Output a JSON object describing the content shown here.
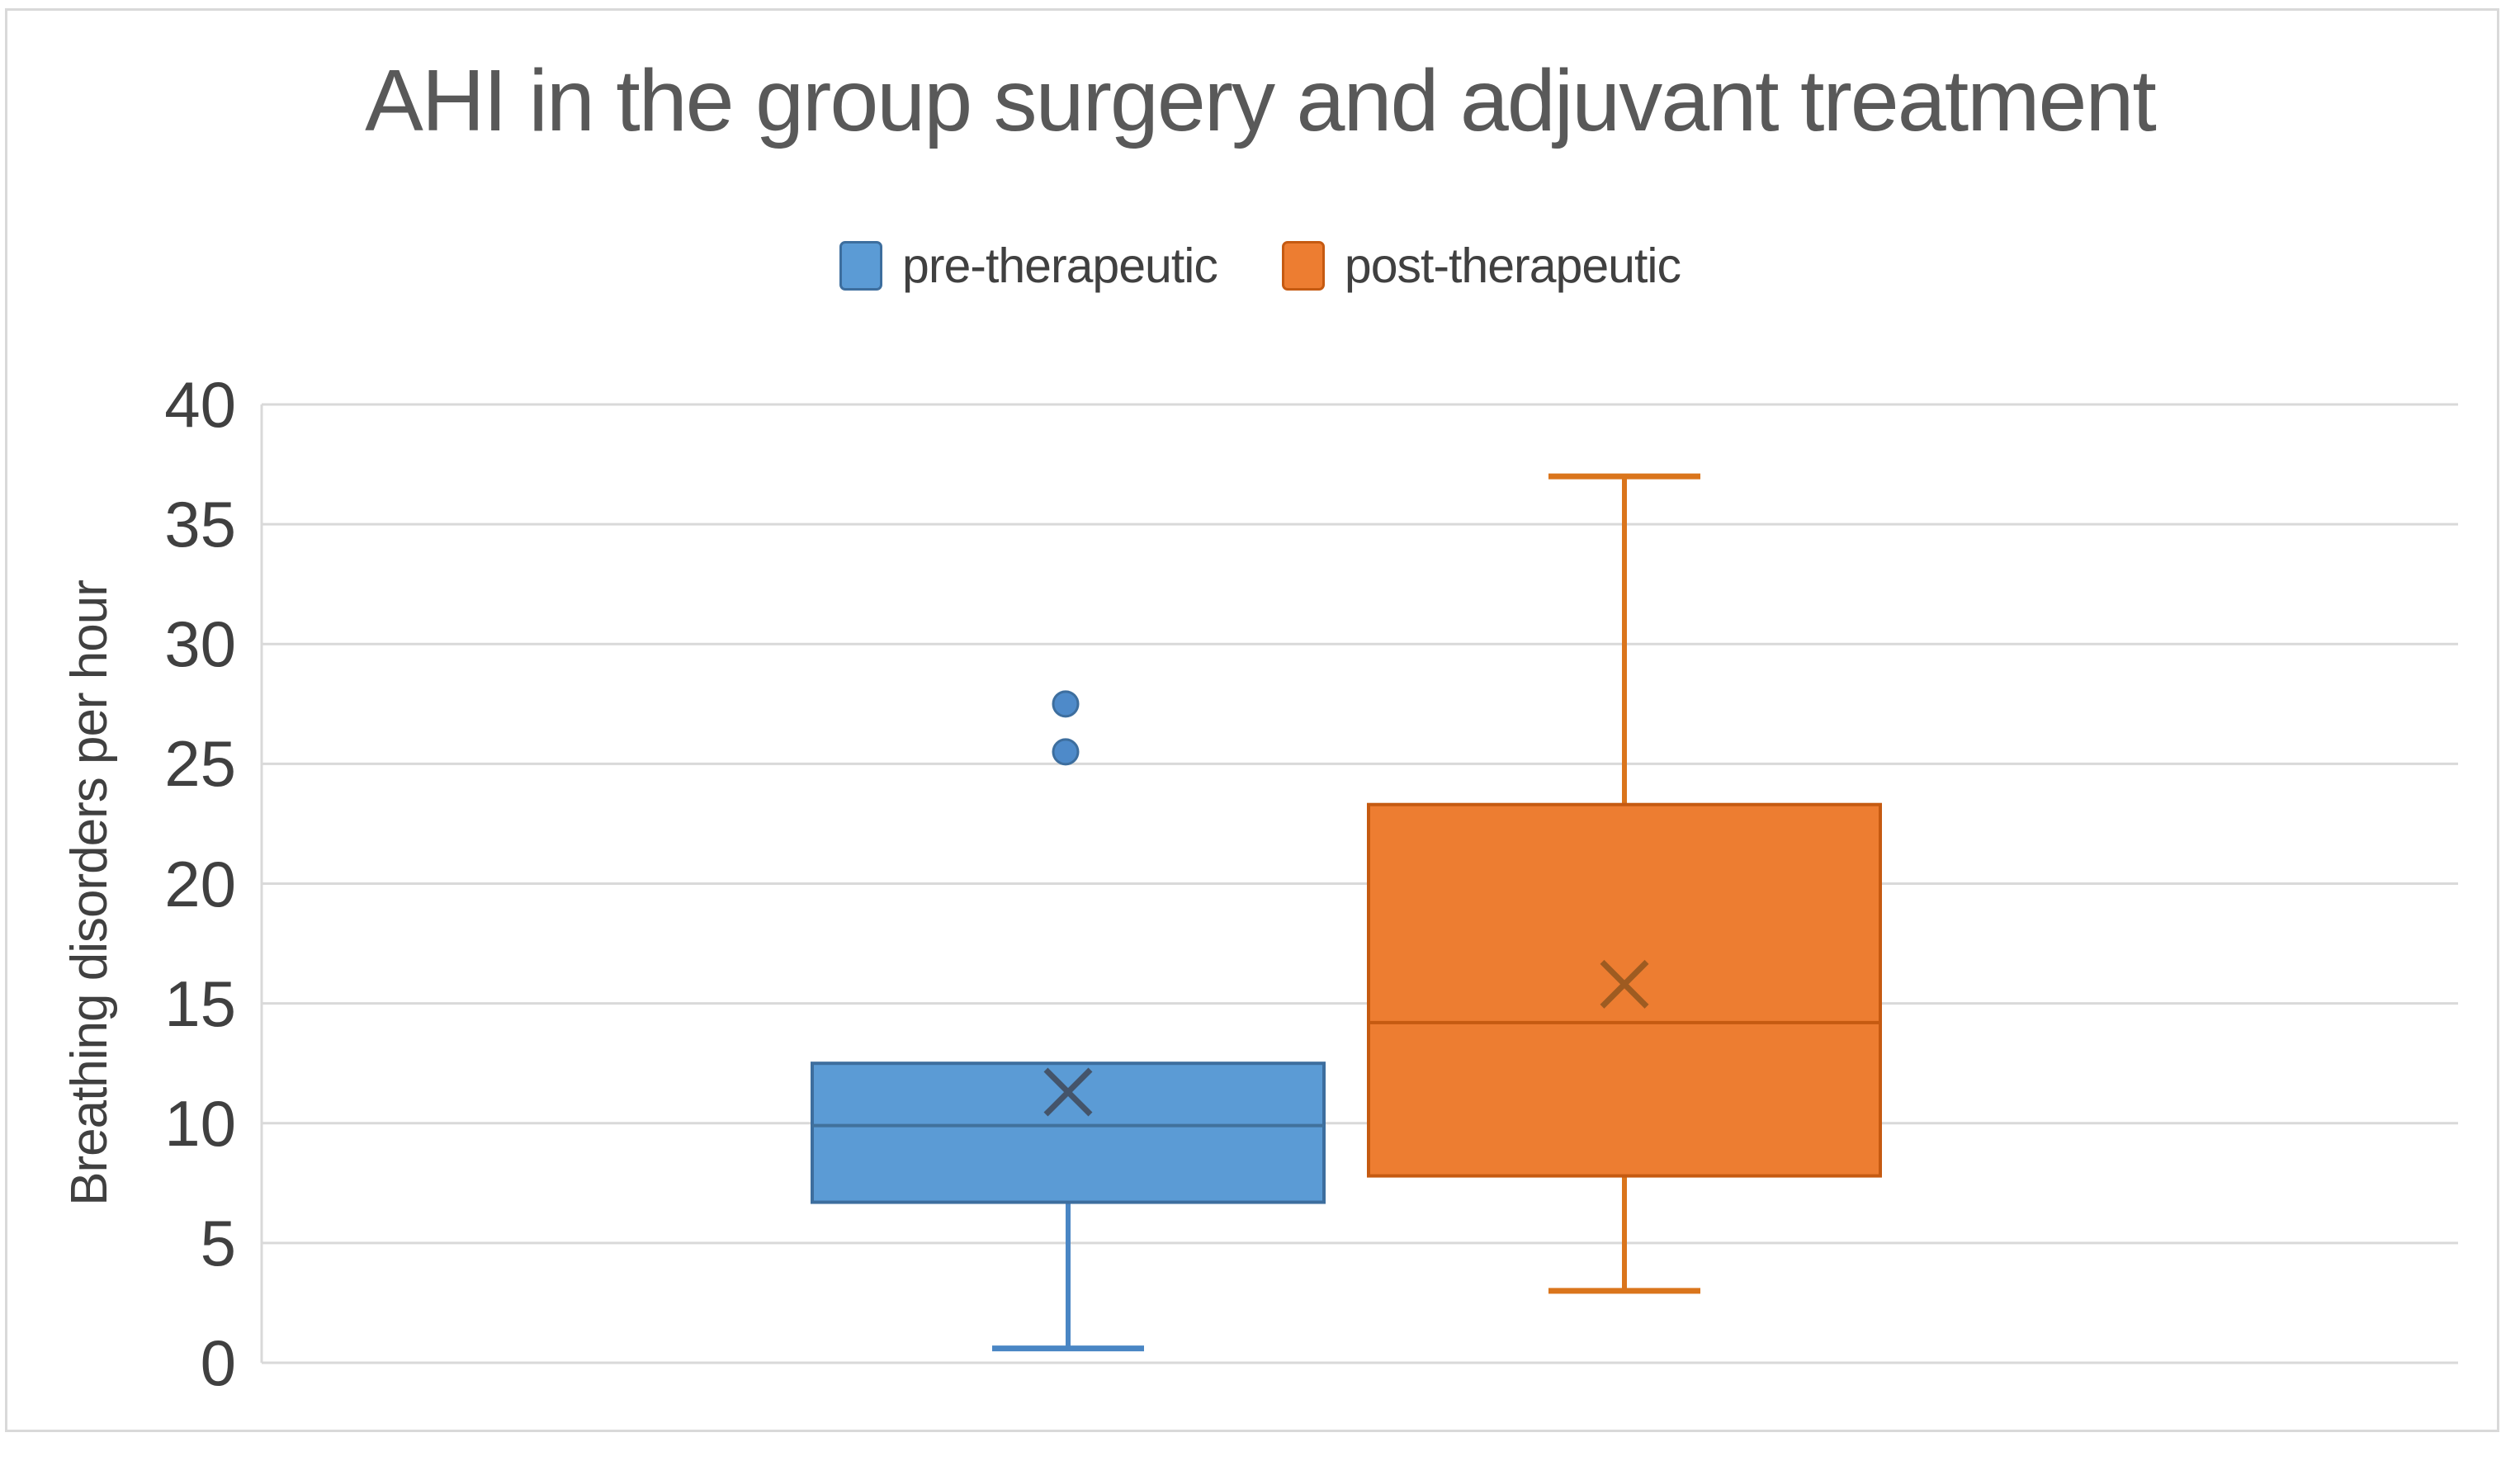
{
  "title": "AHI in the group surgery and adjuvant treatment",
  "legend": [
    {
      "label": "pre-therapeutic",
      "color": "#5B9BD5",
      "edge": "#3D6E9E"
    },
    {
      "label": "post-therapeutic",
      "color": "#ED7D31",
      "edge": "#C55A11"
    }
  ],
  "y_axis": {
    "label": "Breathing disorders per  hour",
    "ticks": [
      0,
      5,
      10,
      15,
      20,
      25,
      30,
      35,
      40
    ]
  },
  "colors": {
    "title_text": "#595959",
    "axis_text": "#404040",
    "gridline": "#D9D9D9",
    "frame": "#D9D9D9"
  },
  "chart_data": {
    "type": "boxplot",
    "title": "AHI in the group surgery and adjuvant treatment",
    "xlabel": "",
    "ylabel": "Breathing disorders per  hour",
    "ylim": [
      0,
      40
    ],
    "ytick_step": 5,
    "grid": true,
    "legend_position": "top",
    "series": [
      {
        "name": "pre-therapeutic",
        "whisker_low": 0.6,
        "q1": 6.7,
        "median": 9.9,
        "q3": 12.5,
        "whisker_high": 12.5,
        "mean": 11.3,
        "outliers": [
          25.5,
          27.5
        ],
        "fill": "#5B9BD5",
        "edge": "#3D6E9E",
        "median_color": "#41719C",
        "whisker_color": "#4A86C4",
        "mean_color": "#44546A",
        "outlier_color": "#4E8AC9"
      },
      {
        "name": "post-therapeutic",
        "whisker_low": 3.0,
        "q1": 7.8,
        "median": 14.2,
        "q3": 23.3,
        "whisker_high": 37.0,
        "mean": 15.8,
        "outliers": [],
        "fill": "#ED7D31",
        "edge": "#C55A11",
        "median_color": "#C55A11",
        "whisker_color": "#DA751C",
        "mean_color": "#9E5B21",
        "outlier_color": "#ED7D31"
      }
    ]
  }
}
